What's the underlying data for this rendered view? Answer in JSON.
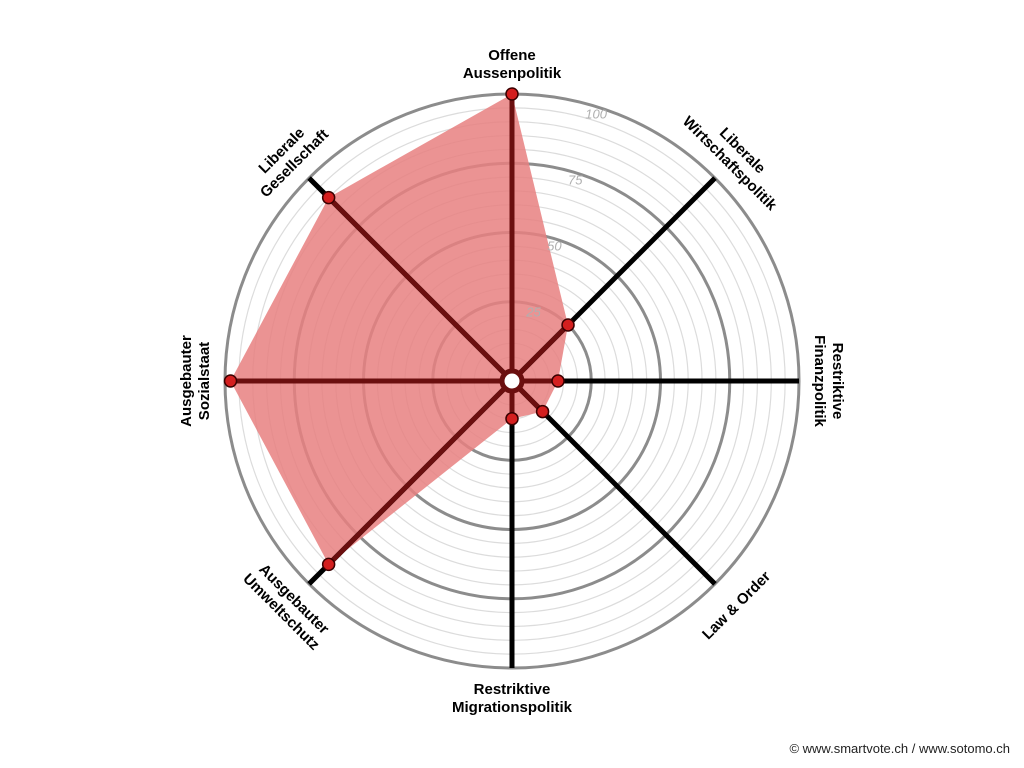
{
  "chart_data": {
    "type": "radar",
    "title": "",
    "axes": [
      "Offene\nAussenpolitik",
      "Liberale\nWirtschaftspolitik",
      "Restriktive\nFinanzpolitik",
      "Law & Order",
      "Restriktive\nMigrationspolitik",
      "Ausgebauter\nUmweltschutz",
      "Ausgebauter\nSozialstaat",
      "Liberale\nGesellschaft"
    ],
    "values": [
      100,
      25,
      13,
      12,
      10,
      90,
      98,
      90
    ],
    "range": [
      0,
      100
    ],
    "ticks": [
      25,
      50,
      75,
      100
    ],
    "minor_step": 5,
    "colors": {
      "fill": "#e88080",
      "fill_opacity": 0.85,
      "spoke": "#000000",
      "spoke_inside": "#6b0f0f",
      "point": "#d41f1f",
      "major_ring": "#8c8c8c",
      "minor_ring": "#dcdcdc"
    }
  },
  "credit": "© www.smartvote.ch / www.sotomo.ch"
}
